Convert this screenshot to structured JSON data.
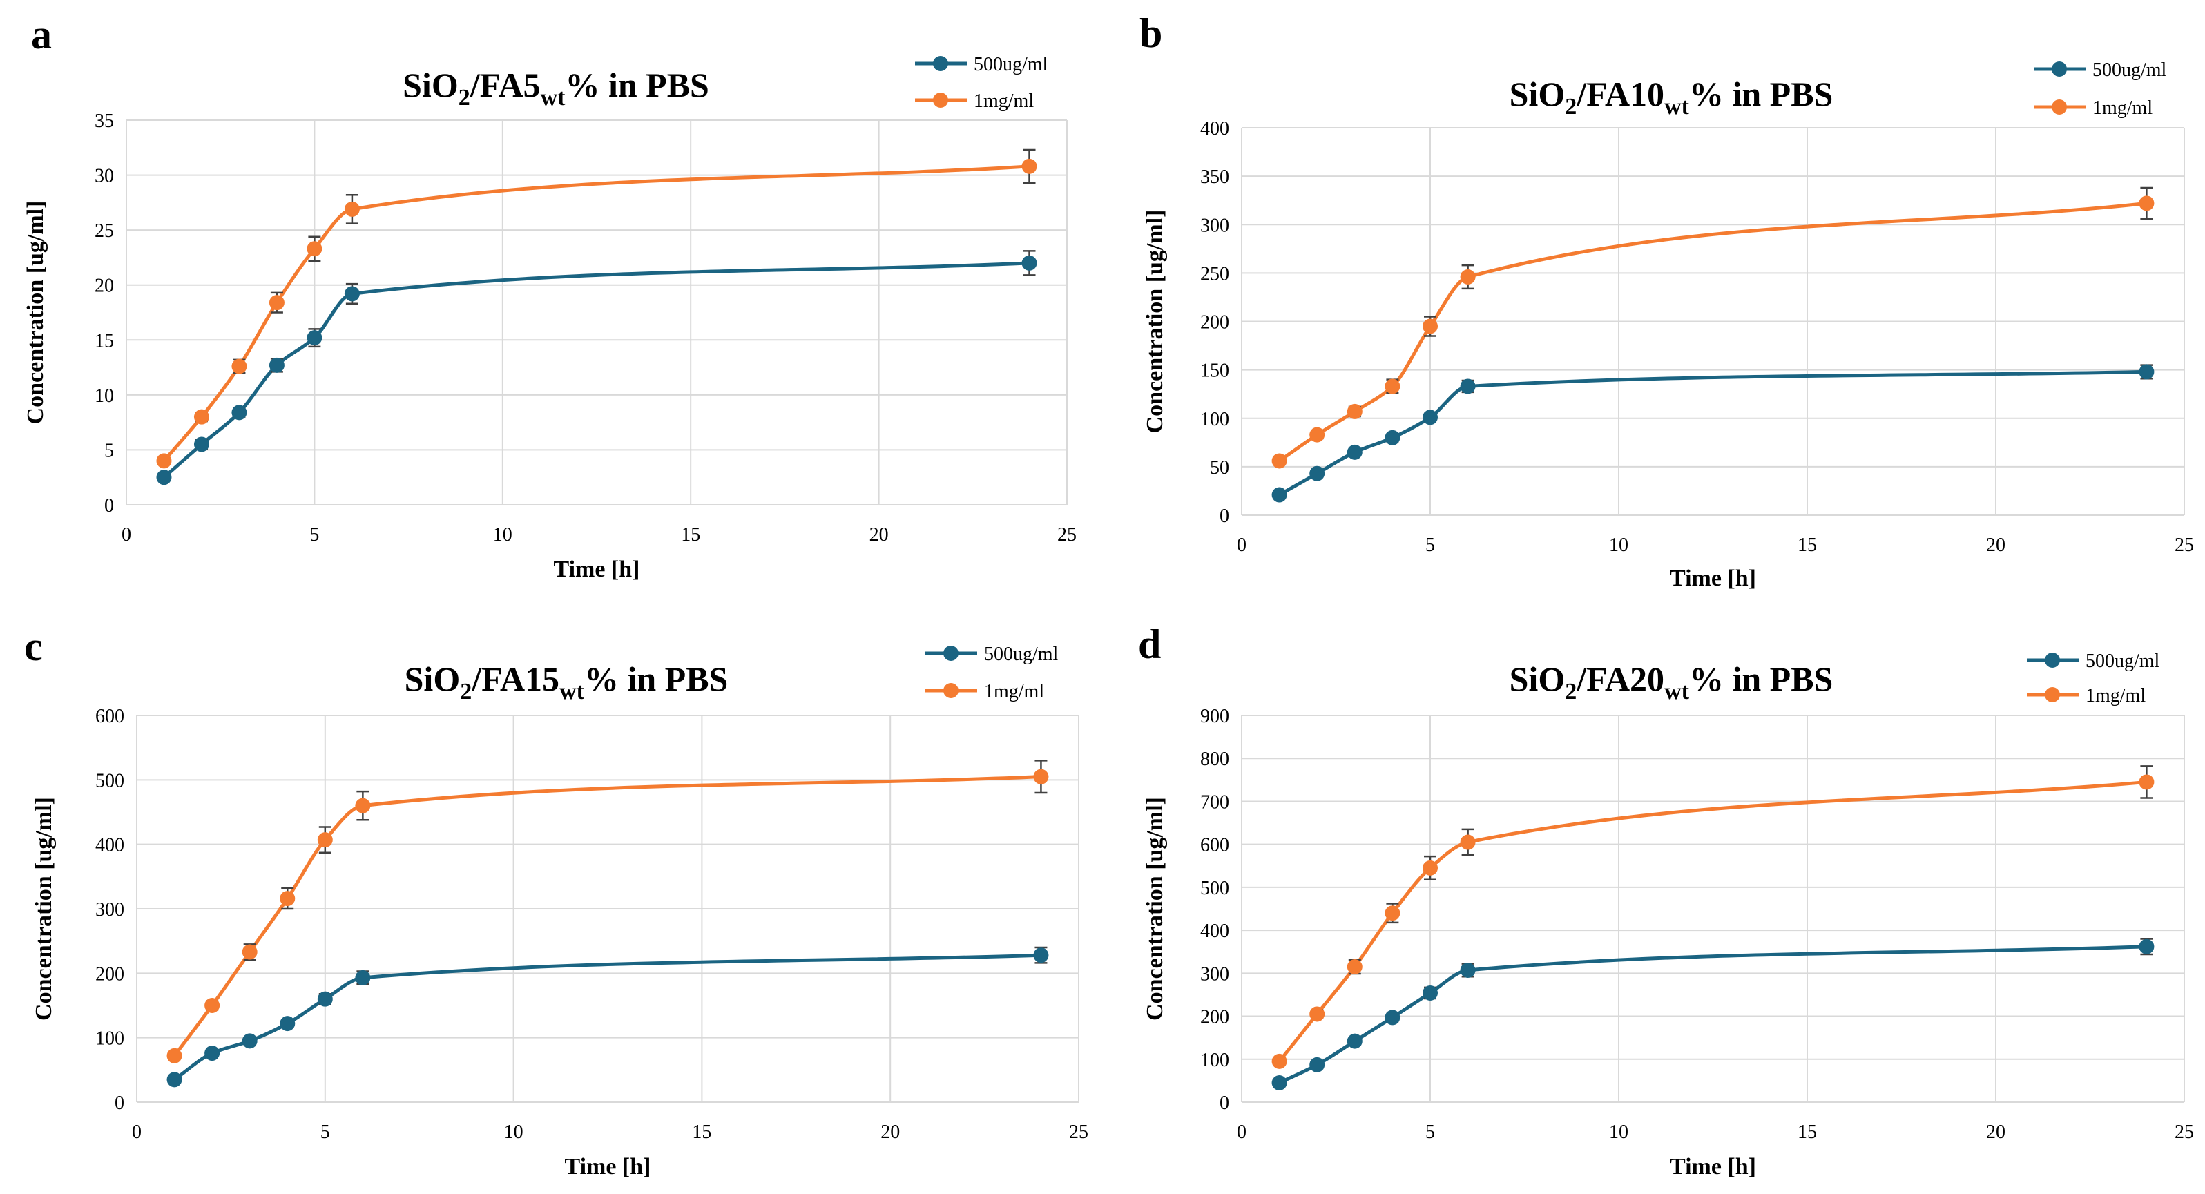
{
  "colors": {
    "series_500": "#1B6482",
    "series_1mg": "#F47B30",
    "grid": "#D9D9D9",
    "errorbar": "#404040"
  },
  "chart_data": [
    {
      "panel": "a",
      "type": "line",
      "title": {
        "main": "SiO",
        "sub2": "2",
        "mid": "/FA5",
        "subwt": "wt",
        "tail": "% in PBS"
      },
      "xlabel": "Time [h]",
      "ylabel": "Concentration [ug/ml]",
      "xlim": [
        0,
        25
      ],
      "xticks": [
        0,
        5,
        10,
        15,
        20,
        25
      ],
      "ylim": [
        0,
        35
      ],
      "yticks": [
        0,
        5,
        10,
        15,
        20,
        25,
        30,
        35
      ],
      "grid": true,
      "legend": "top-right",
      "x": [
        1,
        2,
        3,
        4,
        5,
        6,
        24
      ],
      "series": [
        {
          "name": "500ug/ml",
          "values": [
            2.5,
            5.5,
            8.4,
            12.7,
            15.2,
            19.2,
            22.0
          ],
          "errors": [
            0.3,
            0.4,
            0.4,
            0.6,
            0.8,
            0.9,
            1.1
          ]
        },
        {
          "name": "1mg/ml",
          "values": [
            4.0,
            8.0,
            12.6,
            18.4,
            23.3,
            26.9,
            30.8
          ],
          "errors": [
            0.3,
            0.4,
            0.6,
            0.9,
            1.1,
            1.3,
            1.5
          ]
        }
      ]
    },
    {
      "panel": "b",
      "type": "line",
      "title": {
        "main": "SiO",
        "sub2": "2",
        "mid": "/FA10",
        "subwt": "wt",
        "tail": "% in PBS"
      },
      "xlabel": "Time [h]",
      "ylabel": "Concentration [ug/ml]",
      "xlim": [
        0,
        25
      ],
      "xticks": [
        0,
        5,
        10,
        15,
        20,
        25
      ],
      "ylim": [
        0,
        400
      ],
      "yticks": [
        0,
        50,
        100,
        150,
        200,
        250,
        300,
        350,
        400
      ],
      "grid": true,
      "legend": "top-right",
      "x": [
        1,
        2,
        3,
        4,
        5,
        6,
        24
      ],
      "series": [
        {
          "name": "500ug/ml",
          "values": [
            21,
            43,
            65,
            80,
            101,
            133,
            148
          ],
          "errors": [
            2,
            3,
            3,
            4,
            4,
            6,
            7
          ]
        },
        {
          "name": "1mg/ml",
          "values": [
            56,
            83,
            107,
            133,
            195,
            246,
            322
          ],
          "errors": [
            3,
            4,
            5,
            7,
            10,
            12,
            16
          ]
        }
      ]
    },
    {
      "panel": "c",
      "type": "line",
      "title": {
        "main": "SiO",
        "sub2": "2",
        "mid": "/FA15",
        "subwt": "wt",
        "tail": "% in PBS"
      },
      "xlabel": "Time [h]",
      "ylabel": "Concentration [ug/ml]",
      "xlim": [
        0,
        25
      ],
      "xticks": [
        0,
        5,
        10,
        15,
        20,
        25
      ],
      "ylim": [
        0,
        600
      ],
      "yticks": [
        0,
        100,
        200,
        300,
        400,
        500,
        600
      ],
      "grid": true,
      "legend": "top-right",
      "x": [
        1,
        2,
        3,
        4,
        5,
        6,
        24
      ],
      "series": [
        {
          "name": "500ug/ml",
          "values": [
            35,
            76,
            95,
            122,
            160,
            193,
            228
          ],
          "errors": [
            4,
            4,
            5,
            6,
            8,
            10,
            12
          ]
        },
        {
          "name": "1mg/ml",
          "values": [
            72,
            150,
            233,
            316,
            407,
            460,
            505
          ],
          "errors": [
            4,
            7,
            12,
            16,
            20,
            22,
            25
          ]
        }
      ]
    },
    {
      "panel": "d",
      "type": "line",
      "title": {
        "main": "SiO",
        "sub2": "2",
        "mid": "/FA20",
        "subwt": "wt",
        "tail": "% in PBS"
      },
      "xlabel": "Time [h]",
      "ylabel": "Concentration [ug/ml]",
      "xlim": [
        0,
        25
      ],
      "xticks": [
        0,
        5,
        10,
        15,
        20,
        25
      ],
      "ylim": [
        0,
        900
      ],
      "yticks": [
        0,
        100,
        200,
        300,
        400,
        500,
        600,
        700,
        800,
        900
      ],
      "grid": true,
      "legend": "top-right",
      "x": [
        1,
        2,
        3,
        4,
        5,
        6,
        24
      ],
      "series": [
        {
          "name": "500ug/ml",
          "values": [
            45,
            87,
            142,
            197,
            254,
            307,
            362
          ],
          "errors": [
            5,
            5,
            8,
            9,
            13,
            15,
            18
          ]
        },
        {
          "name": "1mg/ml",
          "values": [
            95,
            205,
            315,
            440,
            545,
            605,
            745
          ],
          "errors": [
            5,
            10,
            16,
            22,
            27,
            30,
            37
          ]
        }
      ]
    }
  ]
}
